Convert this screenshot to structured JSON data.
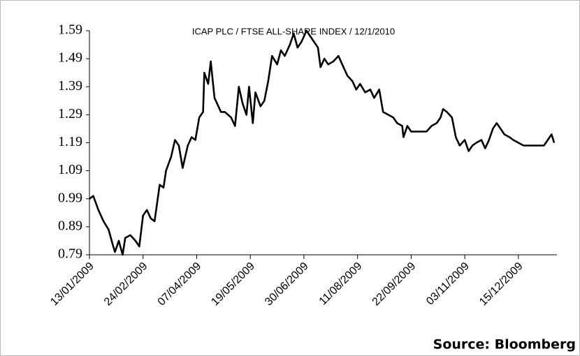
{
  "chart_data": {
    "type": "line",
    "title": "ICAP PLC / FTSE ALL-SHARE INDEX / 12/1/2010",
    "source": "Source: Bloomberg",
    "x": [
      "13/01/2009",
      "16/01/2009",
      "20/01/2009",
      "24/01/2009",
      "28/01/2009",
      "31/01/2009",
      "02/02/2009",
      "05/02/2009",
      "08/02/2009",
      "10/02/2009",
      "14/02/2009",
      "18/02/2009",
      "21/02/2009",
      "24/02/2009",
      "27/02/2009",
      "02/03/2009",
      "05/03/2009",
      "09/03/2009",
      "12/03/2009",
      "14/03/2009",
      "18/03/2009",
      "21/03/2009",
      "24/03/2009",
      "27/03/2009",
      "31/03/2009",
      "03/04/2009",
      "06/04/2009",
      "09/04/2009",
      "12/04/2009",
      "13/04/2009",
      "16/04/2009",
      "18/04/2009",
      "21/04/2009",
      "23/04/2009",
      "26/04/2009",
      "29/04/2009",
      "04/05/2009",
      "07/05/2009",
      "10/05/2009",
      "13/05/2009",
      "16/05/2009",
      "18/05/2009",
      "21/05/2009",
      "23/05/2009",
      "27/05/2009",
      "30/05/2009",
      "02/06/2009",
      "05/06/2009",
      "09/06/2009",
      "12/06/2009",
      "15/06/2009",
      "19/06/2009",
      "22/06/2009",
      "25/06/2009",
      "28/06/2009",
      "02/07/2009",
      "05/07/2009",
      "08/07/2009",
      "11/07/2009",
      "13/07/2009",
      "16/07/2009",
      "19/07/2009",
      "23/07/2009",
      "27/07/2009",
      "30/07/2009",
      "03/08/2009",
      "07/08/2009",
      "10/08/2009",
      "13/08/2009",
      "17/08/2009",
      "21/08/2009",
      "24/08/2009",
      "28/08/2009",
      "31/08/2009",
      "04/09/2009",
      "08/09/2009",
      "11/09/2009",
      "15/09/2009",
      "16/09/2009",
      "19/09/2009",
      "22/09/2009",
      "26/09/2009",
      "30/09/2009",
      "04/10/2009",
      "08/10/2009",
      "12/10/2009",
      "15/10/2009",
      "17/10/2009",
      "20/10/2009",
      "24/10/2009",
      "27/10/2009",
      "30/10/2009",
      "03/11/2009",
      "06/11/2009",
      "09/11/2009",
      "12/11/2009",
      "16/11/2009",
      "19/11/2009",
      "22/11/2009",
      "25/11/2009",
      "28/11/2009",
      "01/12/2009",
      "04/12/2009",
      "08/12/2009",
      "11/12/2009",
      "15/12/2009",
      "19/12/2009",
      "22/12/2009",
      "26/12/2009",
      "31/12/2009",
      "04/01/2010",
      "07/01/2010",
      "10/01/2010",
      "12/01/2010"
    ],
    "values": [
      0.99,
      1.0,
      0.95,
      0.91,
      0.88,
      0.83,
      0.8,
      0.84,
      0.79,
      0.85,
      0.86,
      0.84,
      0.82,
      0.93,
      0.95,
      0.92,
      0.91,
      1.04,
      1.03,
      1.09,
      1.14,
      1.2,
      1.18,
      1.1,
      1.18,
      1.21,
      1.2,
      1.28,
      1.3,
      1.44,
      1.4,
      1.48,
      1.35,
      1.33,
      1.3,
      1.3,
      1.28,
      1.25,
      1.39,
      1.33,
      1.29,
      1.39,
      1.26,
      1.37,
      1.32,
      1.34,
      1.41,
      1.5,
      1.47,
      1.52,
      1.5,
      1.54,
      1.58,
      1.53,
      1.55,
      1.59,
      1.57,
      1.55,
      1.53,
      1.46,
      1.49,
      1.47,
      1.48,
      1.5,
      1.47,
      1.43,
      1.41,
      1.38,
      1.4,
      1.37,
      1.38,
      1.35,
      1.38,
      1.3,
      1.29,
      1.28,
      1.26,
      1.25,
      1.21,
      1.25,
      1.23,
      1.23,
      1.23,
      1.23,
      1.25,
      1.26,
      1.28,
      1.31,
      1.3,
      1.28,
      1.21,
      1.18,
      1.2,
      1.16,
      1.18,
      1.19,
      1.2,
      1.17,
      1.2,
      1.24,
      1.26,
      1.24,
      1.22,
      1.21,
      1.2,
      1.19,
      1.18,
      1.18,
      1.18,
      1.18,
      1.18,
      1.2,
      1.22,
      1.19
    ],
    "color": "#000000",
    "xlim": [
      "13/01/2009",
      "12/01/2010"
    ],
    "xticks": [
      "13/01/2009",
      "24/02/2009",
      "07/04/2009",
      "19/05/2009",
      "30/06/2009",
      "11/08/2009",
      "22/09/2009",
      "03/11/2009",
      "15/12/2009"
    ],
    "ylim": [
      0.79,
      1.59
    ],
    "yticks": [
      0.79,
      0.89,
      0.99,
      1.09,
      1.19,
      1.29,
      1.39,
      1.49,
      1.59
    ],
    "grid": false
  }
}
